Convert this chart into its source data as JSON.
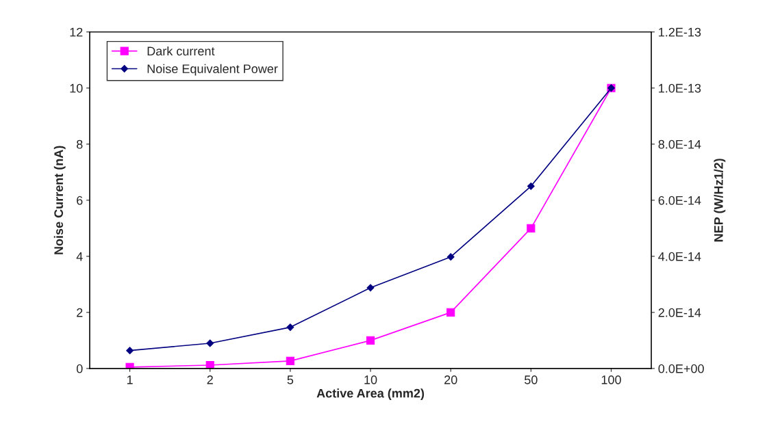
{
  "chart_data": {
    "type": "line",
    "xlabel": "Active Area (mm2)",
    "ylabel": "Noise Current (nA)",
    "y2label": "NEP (W/Hz1/2)",
    "categories": [
      "1",
      "2",
      "5",
      "10",
      "20",
      "50",
      "100"
    ],
    "series": [
      {
        "name": "Dark current",
        "color": "#ff00ff",
        "marker": "square",
        "values": [
          0.05,
          0.12,
          0.27,
          1.0,
          2.0,
          5.0,
          10.0
        ]
      },
      {
        "name": "Noise Equivalent Power",
        "color": "#000080",
        "marker": "diamond",
        "axis": "y2",
        "values": [
          6.4e-15,
          9e-15,
          1.47e-14,
          2.88e-14,
          3.98e-14,
          6.5e-14,
          1e-13
        ]
      }
    ],
    "ylim": [
      0,
      12
    ],
    "yticks": [
      0,
      2,
      4,
      6,
      8,
      10,
      12
    ],
    "y2lim": [
      0,
      1.2e-13
    ],
    "y2ticks": [
      {
        "value": 0,
        "label": "0.0E+00"
      },
      {
        "value": 2e-14,
        "label": "2.0E-14"
      },
      {
        "value": 4e-14,
        "label": "4.0E-14"
      },
      {
        "value": 6e-14,
        "label": "6.0E-14"
      },
      {
        "value": 8e-14,
        "label": "8.0E-14"
      },
      {
        "value": 1e-13,
        "label": "1.0E-13"
      },
      {
        "value": 1.2e-13,
        "label": "1.2E-13"
      }
    ],
    "grid": false,
    "legend": "top left"
  }
}
